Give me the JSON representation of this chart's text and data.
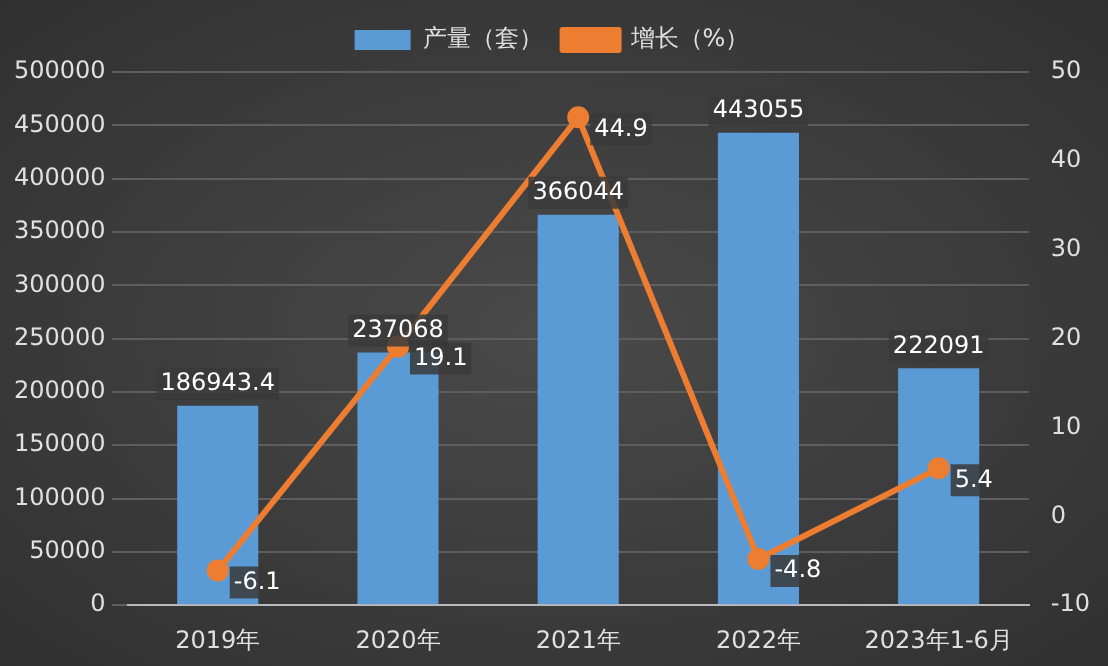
{
  "chart_data": {
    "type": "bar",
    "categories": [
      "2019年",
      "2020年",
      "2021年",
      "2022年",
      "2023年1-6月"
    ],
    "series": [
      {
        "name": "产量（套）",
        "color": "#5b9bd5",
        "values": [
          186943.4,
          237068,
          366044,
          443055,
          222091
        ]
      },
      {
        "name": "增长（%）",
        "type": "line",
        "axis": "y2",
        "color": "#ed7d31",
        "values": [
          -6.1,
          19.1,
          44.9,
          -4.8,
          5.4
        ]
      }
    ],
    "ylim": [
      0,
      500000
    ],
    "yticks": [
      0,
      50000,
      100000,
      150000,
      200000,
      250000,
      300000,
      350000,
      400000,
      450000,
      500000
    ],
    "y2lim": [
      -10,
      50
    ],
    "y2ticks": [
      -10,
      0,
      10,
      20,
      30,
      40,
      50
    ],
    "grid": "y",
    "legend": "top",
    "marker": "circle",
    "data_labels": true
  }
}
